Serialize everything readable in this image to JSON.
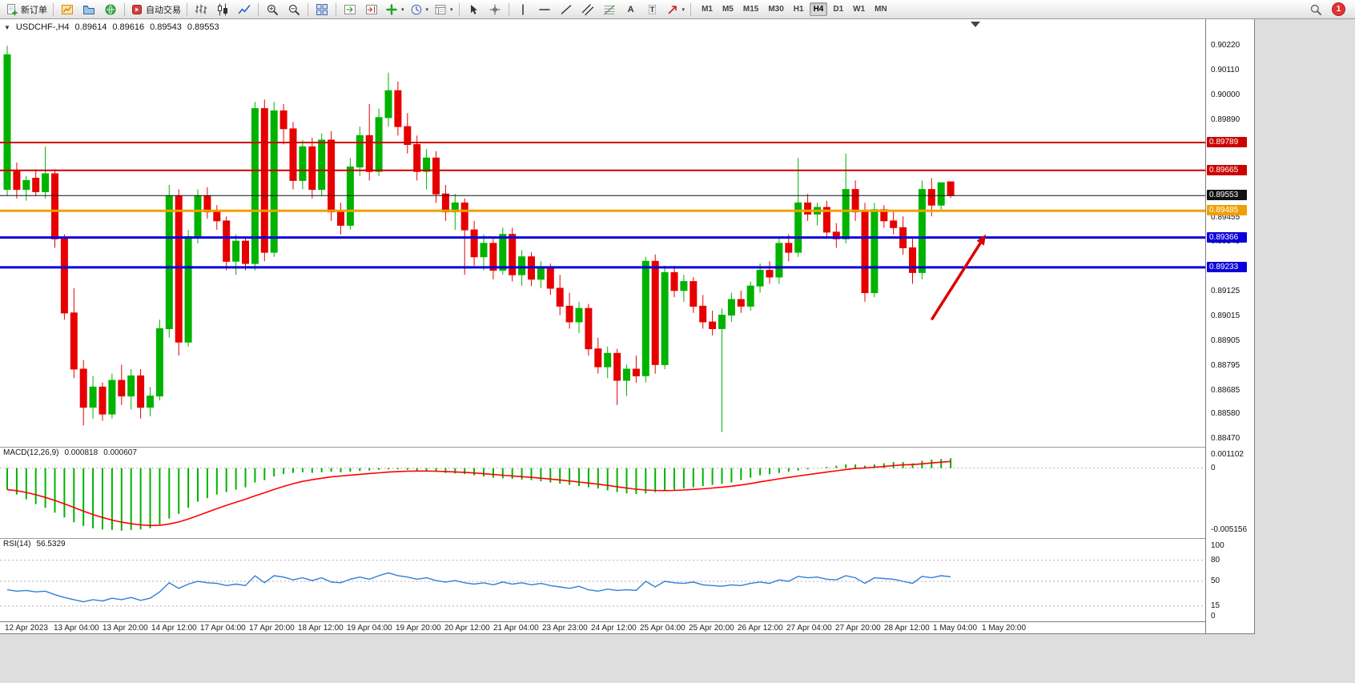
{
  "toolbar": {
    "new_order_label": "新订单",
    "auto_trading_label": "自动交易",
    "text_tool_glyph": "A",
    "label_tool_glyph": "T",
    "timeframes": [
      "M1",
      "M5",
      "M15",
      "M30",
      "H1",
      "H4",
      "D1",
      "W1",
      "MN"
    ],
    "active_timeframe": "H4",
    "notification_count": "1",
    "icons": [
      "new-order",
      "new-chart",
      "profiles",
      "market-watch",
      "auto-trading",
      "bar-chart",
      "candlestick-chart",
      "line-chart",
      "zoom-in",
      "zoom-out",
      "tile-windows",
      "auto-scroll",
      "chart-shift",
      "indicators",
      "periods",
      "templates",
      "cursor",
      "crosshair",
      "vertical-line",
      "horizontal-line",
      "trendline",
      "equidistant-channel",
      "fibonacci",
      "text",
      "text-label",
      "arrows",
      "search"
    ]
  },
  "chart": {
    "symbol_period": "USDCHF-,H4",
    "open": "0.89614",
    "high": "0.89616",
    "low": "0.89543",
    "close": "0.89553"
  },
  "chart_data": {
    "type": "candlestick",
    "symbol": "USDCHF",
    "period": "H4",
    "bull_color": "#00b300",
    "bear_color": "#e60000",
    "price_range": [
      0.88434,
      0.90338
    ],
    "price_axis_ticks": [
      "0.90220",
      "0.90110",
      "0.90000",
      "0.89890",
      "0.89780",
      "0.89670",
      "0.89560",
      "0.89455",
      "0.89345",
      "0.89235",
      "0.89125",
      "0.89015",
      "0.88905",
      "0.88795",
      "0.88685",
      "0.88580",
      "0.88470"
    ],
    "time_labels": [
      "12 Apr 2023",
      "13 Apr 04:00",
      "13 Apr 20:00",
      "14 Apr 12:00",
      "17 Apr 04:00",
      "17 Apr 20:00",
      "18 Apr 12:00",
      "19 Apr 04:00",
      "19 Apr 20:00",
      "20 Apr 12:00",
      "21 Apr 04:00",
      "23 Apr 23:00",
      "24 Apr 12:00",
      "25 Apr 04:00",
      "25 Apr 20:00",
      "26 Apr 12:00",
      "27 Apr 04:00",
      "27 Apr 20:00",
      "28 Apr 12:00",
      "1 May 04:00",
      "1 May 20:00"
    ],
    "hlines": [
      {
        "price": 0.89789,
        "label": "0.89789",
        "color": "#cc0000",
        "width": 2
      },
      {
        "price": 0.89665,
        "label": "0.89665",
        "color": "#cc0000",
        "width": 2
      },
      {
        "price": 0.89553,
        "label": "0.89553",
        "color": "#111111",
        "width": 1
      },
      {
        "price": 0.89485,
        "label": "0.89485",
        "color": "#efa000",
        "width": 3
      },
      {
        "price": 0.89366,
        "label": "0.89366",
        "color": "#0b00d9",
        "width": 3
      },
      {
        "price": 0.89233,
        "label": "0.89233",
        "color": "#0b00d9",
        "width": 3
      }
    ],
    "arrow_annotation": {
      "from_index": 97.0,
      "from_price": 0.89,
      "to_index": 102.7,
      "to_price": 0.8938,
      "color": "#dd0000"
    },
    "candles_ohlc": [
      [
        0.8958,
        0.9022,
        0.8955,
        0.9018
      ],
      [
        0.8966,
        0.897,
        0.8954,
        0.8958
      ],
      [
        0.8958,
        0.8964,
        0.8953,
        0.8962
      ],
      [
        0.8963,
        0.8967,
        0.8955,
        0.8957
      ],
      [
        0.8957,
        0.8977,
        0.8954,
        0.8965
      ],
      [
        0.8965,
        0.8967,
        0.8932,
        0.8936
      ],
      [
        0.8936,
        0.8938,
        0.89,
        0.8903
      ],
      [
        0.8903,
        0.8914,
        0.8874,
        0.8878
      ],
      [
        0.8878,
        0.8882,
        0.8853,
        0.8861
      ],
      [
        0.8861,
        0.8875,
        0.8856,
        0.887
      ],
      [
        0.887,
        0.8872,
        0.8855,
        0.8858
      ],
      [
        0.8858,
        0.8876,
        0.8856,
        0.8873
      ],
      [
        0.8873,
        0.888,
        0.8862,
        0.8866
      ],
      [
        0.8866,
        0.8878,
        0.886,
        0.8875
      ],
      [
        0.8875,
        0.8878,
        0.8856,
        0.8861
      ],
      [
        0.8861,
        0.887,
        0.8857,
        0.8866
      ],
      [
        0.8866,
        0.89,
        0.8864,
        0.8896
      ],
      [
        0.8896,
        0.896,
        0.8892,
        0.8955
      ],
      [
        0.8955,
        0.8958,
        0.8884,
        0.889
      ],
      [
        0.889,
        0.894,
        0.8888,
        0.8937
      ],
      [
        0.8937,
        0.8958,
        0.8934,
        0.8955
      ],
      [
        0.8955,
        0.8959,
        0.8945,
        0.8948
      ],
      [
        0.8948,
        0.8951,
        0.894,
        0.8944
      ],
      [
        0.8944,
        0.8946,
        0.8922,
        0.8926
      ],
      [
        0.8926,
        0.8938,
        0.892,
        0.8935
      ],
      [
        0.8935,
        0.8937,
        0.8922,
        0.8925
      ],
      [
        0.8925,
        0.8997,
        0.8922,
        0.8994
      ],
      [
        0.8994,
        0.8998,
        0.8926,
        0.893
      ],
      [
        0.893,
        0.8997,
        0.8928,
        0.8993
      ],
      [
        0.8993,
        0.8996,
        0.8978,
        0.8985
      ],
      [
        0.8985,
        0.8988,
        0.8958,
        0.8962
      ],
      [
        0.8962,
        0.898,
        0.8958,
        0.8977
      ],
      [
        0.8977,
        0.8981,
        0.8954,
        0.8958
      ],
      [
        0.8958,
        0.8983,
        0.8955,
        0.898
      ],
      [
        0.898,
        0.8984,
        0.8944,
        0.8948
      ],
      [
        0.8948,
        0.8952,
        0.8938,
        0.8942
      ],
      [
        0.8942,
        0.8972,
        0.894,
        0.8968
      ],
      [
        0.8968,
        0.8986,
        0.8964,
        0.8982
      ],
      [
        0.8982,
        0.8996,
        0.8962,
        0.8966
      ],
      [
        0.8966,
        0.8994,
        0.8964,
        0.899
      ],
      [
        0.899,
        0.901,
        0.8986,
        0.9002
      ],
      [
        0.9002,
        0.9006,
        0.8982,
        0.8986
      ],
      [
        0.8986,
        0.8992,
        0.8974,
        0.8978
      ],
      [
        0.8978,
        0.8982,
        0.8962,
        0.8966
      ],
      [
        0.8966,
        0.8976,
        0.8958,
        0.8972
      ],
      [
        0.8972,
        0.8975,
        0.8952,
        0.8956
      ],
      [
        0.8956,
        0.896,
        0.8944,
        0.8948
      ],
      [
        0.8948,
        0.8956,
        0.894,
        0.8952
      ],
      [
        0.8952,
        0.8954,
        0.892,
        0.894
      ],
      [
        0.894,
        0.8944,
        0.8924,
        0.8928
      ],
      [
        0.8928,
        0.8938,
        0.8922,
        0.8934
      ],
      [
        0.8934,
        0.8936,
        0.8918,
        0.8922
      ],
      [
        0.8922,
        0.8941,
        0.892,
        0.8938
      ],
      [
        0.8938,
        0.8941,
        0.8917,
        0.892
      ],
      [
        0.892,
        0.8931,
        0.8915,
        0.8928
      ],
      [
        0.8928,
        0.893,
        0.8915,
        0.8918
      ],
      [
        0.8918,
        0.8926,
        0.8914,
        0.8923
      ],
      [
        0.8923,
        0.8925,
        0.8911,
        0.8914
      ],
      [
        0.8914,
        0.892,
        0.8902,
        0.8906
      ],
      [
        0.8906,
        0.8912,
        0.8896,
        0.8899
      ],
      [
        0.8899,
        0.8908,
        0.8894,
        0.8905
      ],
      [
        0.8905,
        0.8907,
        0.8884,
        0.8887
      ],
      [
        0.8887,
        0.8892,
        0.8876,
        0.8879
      ],
      [
        0.8879,
        0.8888,
        0.8874,
        0.8885
      ],
      [
        0.8885,
        0.8887,
        0.8862,
        0.8873
      ],
      [
        0.8873,
        0.888,
        0.8866,
        0.8878
      ],
      [
        0.8878,
        0.8884,
        0.8872,
        0.8875
      ],
      [
        0.8875,
        0.8928,
        0.8872,
        0.8926
      ],
      [
        0.8926,
        0.8929,
        0.8876,
        0.888
      ],
      [
        0.888,
        0.8924,
        0.8878,
        0.8921
      ],
      [
        0.8921,
        0.8924,
        0.891,
        0.8913
      ],
      [
        0.8913,
        0.892,
        0.8908,
        0.8917
      ],
      [
        0.8917,
        0.8919,
        0.8903,
        0.8906
      ],
      [
        0.8906,
        0.8911,
        0.8896,
        0.8899
      ],
      [
        0.8899,
        0.8904,
        0.8893,
        0.8896
      ],
      [
        0.8896,
        0.8905,
        0.885,
        0.8902
      ],
      [
        0.8902,
        0.8912,
        0.8899,
        0.8909
      ],
      [
        0.8909,
        0.8913,
        0.8903,
        0.8906
      ],
      [
        0.8906,
        0.8917,
        0.8904,
        0.8915
      ],
      [
        0.8915,
        0.8925,
        0.8912,
        0.8922
      ],
      [
        0.8922,
        0.8926,
        0.8916,
        0.8919
      ],
      [
        0.8919,
        0.8937,
        0.8916,
        0.8934
      ],
      [
        0.8934,
        0.8938,
        0.8926,
        0.893
      ],
      [
        0.893,
        0.8972,
        0.8928,
        0.8952
      ],
      [
        0.8952,
        0.8956,
        0.8944,
        0.8947
      ],
      [
        0.8947,
        0.8952,
        0.8942,
        0.895
      ],
      [
        0.895,
        0.8953,
        0.8936,
        0.8939
      ],
      [
        0.8939,
        0.8943,
        0.8932,
        0.8936
      ],
      [
        0.8936,
        0.8974,
        0.8934,
        0.8958
      ],
      [
        0.8958,
        0.8962,
        0.8944,
        0.8948
      ],
      [
        0.8948,
        0.8952,
        0.8908,
        0.8912
      ],
      [
        0.8912,
        0.8952,
        0.891,
        0.8949
      ],
      [
        0.8949,
        0.8951,
        0.8941,
        0.8944
      ],
      [
        0.8944,
        0.8948,
        0.8938,
        0.8941
      ],
      [
        0.8941,
        0.8946,
        0.8929,
        0.8932
      ],
      [
        0.8932,
        0.8936,
        0.8916,
        0.8921
      ],
      [
        0.8921,
        0.8962,
        0.8918,
        0.8958
      ],
      [
        0.8958,
        0.8963,
        0.8946,
        0.8951
      ],
      [
        0.8951,
        0.8961,
        0.8949,
        0.8961
      ],
      [
        0.89614,
        0.89616,
        0.89543,
        0.89553
      ]
    ],
    "macd": {
      "title": "MACD(12,26,9)",
      "main_value": "0.000818",
      "signal_value": "0.000607",
      "range": [
        -0.00582,
        0.00177
      ],
      "axis_labels": [
        {
          "value": 0.001102,
          "label": "0.001102"
        },
        {
          "value": 0,
          "label": "0"
        },
        {
          "value": -0.005156,
          "label": "-0.005156"
        }
      ],
      "histogram_color": "#00b300",
      "signal_color": "#ff0000",
      "values": [
        -0.0018,
        -0.0022,
        -0.0026,
        -0.003,
        -0.0033,
        -0.0037,
        -0.0041,
        -0.0045,
        -0.0048,
        -0.005,
        -0.0051,
        -0.00515,
        -0.0052,
        -0.00515,
        -0.0051,
        -0.005,
        -0.0047,
        -0.0042,
        -0.0038,
        -0.0033,
        -0.0028,
        -0.0025,
        -0.0022,
        -0.002,
        -0.0018,
        -0.0016,
        -0.0012,
        -0.001,
        -0.0007,
        -0.0005,
        -0.0004,
        -0.00035,
        -0.0004,
        -0.00035,
        -0.0003,
        -0.00035,
        -0.0003,
        -0.00025,
        -0.0002,
        -0.00015,
        -0.0001,
        -0.0001,
        -0.00015,
        -0.0002,
        -0.00025,
        -0.0003,
        -0.0004,
        -0.00045,
        -0.0005,
        -0.0006,
        -0.0007,
        -0.0008,
        -0.00085,
        -0.0009,
        -0.00095,
        -0.001,
        -0.0011,
        -0.0012,
        -0.0013,
        -0.0014,
        -0.0015,
        -0.0016,
        -0.0017,
        -0.00185,
        -0.002,
        -0.0021,
        -0.00215,
        -0.0021,
        -0.002,
        -0.0019,
        -0.0018,
        -0.0017,
        -0.0016,
        -0.0015,
        -0.0014,
        -0.0013,
        -0.0012,
        -0.001,
        -0.0008,
        -0.0006,
        -0.0005,
        -0.0004,
        -0.0003,
        -0.0002,
        -0.0001,
        0,
        0.0001,
        0.0002,
        0.0003,
        0.0003,
        0.0002,
        0.0003,
        0.0004,
        0.0005,
        0.0005,
        0.0004,
        0.0006,
        0.0007,
        0.00075,
        0.000818
      ]
    },
    "rsi": {
      "title": "RSI(14)",
      "value": "56.5329",
      "range": [
        0,
        100
      ],
      "levels": [
        80,
        50,
        15
      ],
      "axis_labels": [
        {
          "value": 100,
          "label": "100"
        },
        {
          "value": 80,
          "label": "80"
        },
        {
          "value": 50,
          "label": "50"
        },
        {
          "value": 15,
          "label": "15"
        },
        {
          "value": 0,
          "label": "0"
        }
      ],
      "line_color": "#2f7ed8",
      "values": [
        38,
        36,
        37,
        35,
        36,
        31,
        27,
        24,
        21,
        24,
        22,
        26,
        24,
        27,
        23,
        26,
        35,
        48,
        40,
        46,
        50,
        48,
        47,
        44,
        46,
        44,
        58,
        48,
        58,
        56,
        52,
        55,
        51,
        55,
        49,
        48,
        53,
        56,
        53,
        58,
        62,
        58,
        56,
        53,
        55,
        51,
        49,
        51,
        48,
        46,
        48,
        45,
        49,
        46,
        48,
        45,
        47,
        44,
        42,
        40,
        43,
        38,
        36,
        39,
        37,
        38,
        37,
        50,
        42,
        50,
        48,
        47,
        49,
        45,
        44,
        43,
        45,
        44,
        47,
        49,
        47,
        52,
        50,
        57,
        55,
        56,
        53,
        52,
        58,
        55,
        47,
        55,
        54,
        53,
        50,
        47,
        57,
        55,
        58,
        56.53
      ]
    }
  }
}
